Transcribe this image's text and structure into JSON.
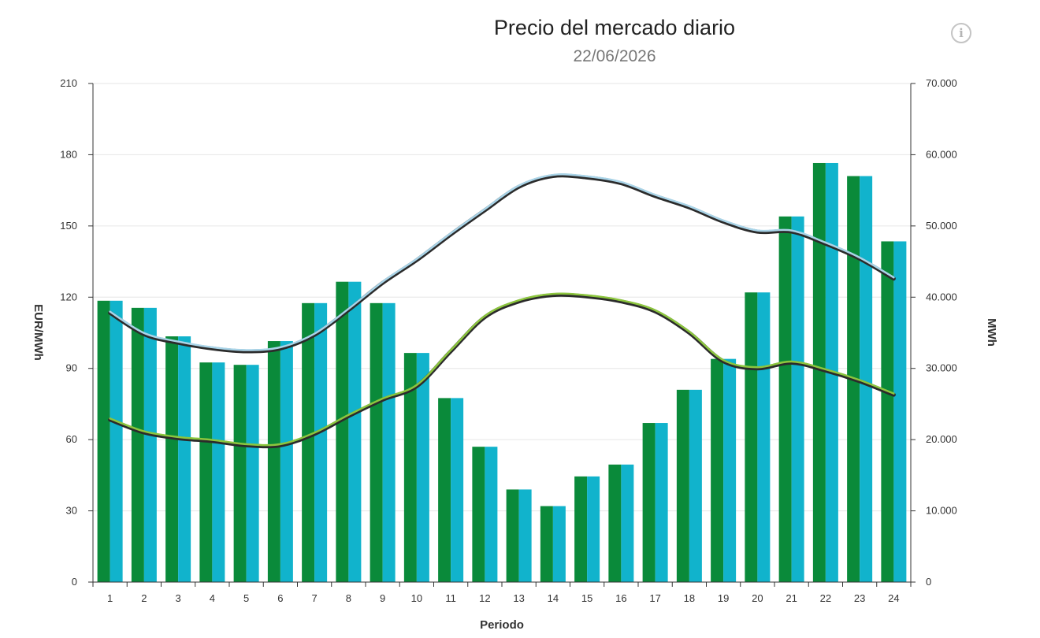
{
  "header": {
    "title": "Precio del mercado diario",
    "subtitle": "22/06/2026",
    "info_icon": "info-icon",
    "info_symbol": "i"
  },
  "chart_data": {
    "type": "bar",
    "title": "Precio del mercado diario",
    "subtitle": "22/06/2026",
    "xlabel": "Periodo",
    "ylabel_left": "EUR/MWh",
    "ylabel_right": "MWh",
    "categories": [
      "1",
      "2",
      "3",
      "4",
      "5",
      "6",
      "7",
      "8",
      "9",
      "10",
      "11",
      "12",
      "13",
      "14",
      "15",
      "16",
      "17",
      "18",
      "19",
      "20",
      "21",
      "22",
      "23",
      "24"
    ],
    "ylim_left": [
      0,
      210
    ],
    "ylim_right": [
      0,
      70000
    ],
    "yticks_left": [
      "0",
      "30",
      "60",
      "90",
      "120",
      "150",
      "180",
      "210"
    ],
    "yticks_right": [
      "0",
      "10.000",
      "20.000",
      "30.000",
      "40.000",
      "50.000",
      "60.000",
      "70.000"
    ],
    "grid": true,
    "series": [
      {
        "kind": "bar",
        "axis": "left",
        "color": "#0a8a3a",
        "values": [
          118.5,
          115.5,
          103.5,
          92.5,
          91.5,
          101.5,
          117.5,
          126.5,
          117.5,
          96.5,
          77.5,
          57,
          39,
          32,
          44.5,
          49.5,
          67,
          81,
          94,
          122,
          154,
          176.5,
          171,
          143.5
        ]
      },
      {
        "kind": "bar",
        "axis": "left",
        "color": "#11b3cc",
        "values": [
          118.5,
          115.5,
          103.5,
          92.5,
          91.5,
          101.5,
          117.5,
          126.5,
          117.5,
          96.5,
          77.5,
          57,
          39,
          32,
          44.5,
          49.5,
          67,
          81,
          94,
          122,
          154,
          176.5,
          171,
          143.5
        ]
      },
      {
        "kind": "line",
        "axis": "right",
        "color": "#a9d4e8",
        "values": [
          37800,
          34800,
          33600,
          32800,
          32400,
          32800,
          34700,
          38200,
          42000,
          45200,
          48800,
          52200,
          55500,
          57000,
          56800,
          56000,
          54200,
          52600,
          50600,
          49200,
          49200,
          47500,
          45400,
          42600
        ]
      },
      {
        "kind": "line",
        "axis": "right",
        "color": "#8cc63e",
        "values": [
          22800,
          21000,
          20200,
          19800,
          19200,
          19200,
          20800,
          23300,
          25600,
          27500,
          32400,
          37200,
          39400,
          40300,
          40100,
          39400,
          38000,
          35000,
          31000,
          30000,
          30800,
          29700,
          28200,
          26300
        ]
      }
    ]
  }
}
